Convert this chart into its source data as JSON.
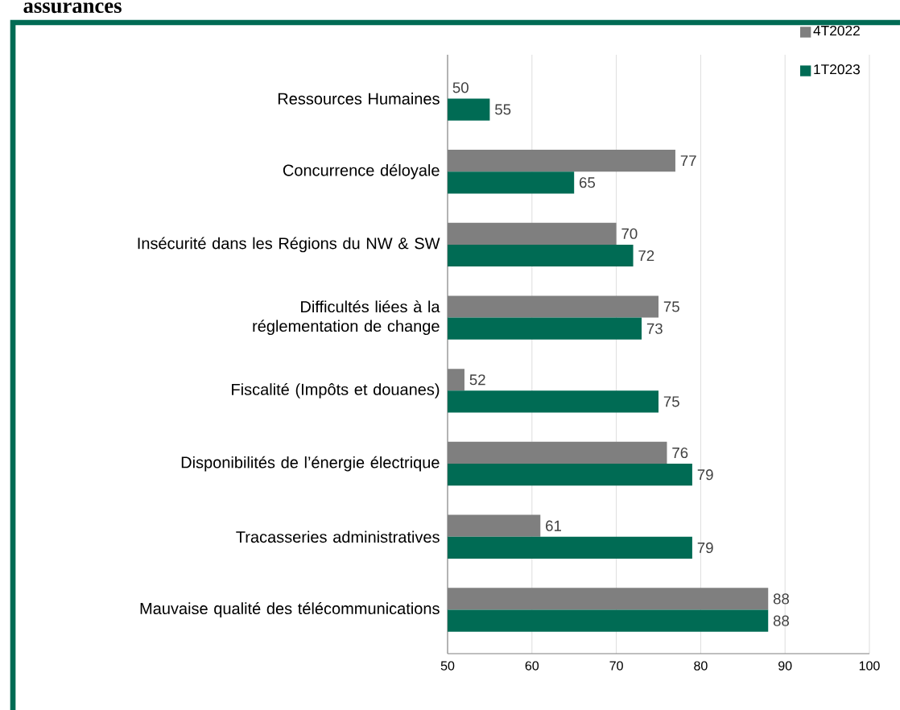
{
  "chart_data": {
    "type": "bar",
    "orientation": "horizontal",
    "title": "assurances",
    "categories": [
      "Ressources Humaines",
      "Concurrence déloyale",
      "Insécurité dans les Régions du NW & SW",
      "Difficultés liées à la réglementation de change",
      "Fiscalité (Impôts et douanes)",
      "Disponibilités de l’énergie électrique",
      "Tracasseries administratives",
      "Mauvaise qualité des télécommunications"
    ],
    "series": [
      {
        "name": "4T2022",
        "color": "#7f7f7f",
        "values": [
          50,
          77,
          70,
          75,
          52,
          76,
          61,
          88
        ]
      },
      {
        "name": "1T2023",
        "color": "#006b54",
        "values": [
          55,
          65,
          72,
          73,
          75,
          79,
          79,
          88
        ]
      }
    ],
    "xlim": [
      50,
      100
    ],
    "xticks": [
      50,
      60,
      70,
      80,
      90,
      100
    ],
    "grid": "x",
    "legend": "top right",
    "data_labels": true
  }
}
